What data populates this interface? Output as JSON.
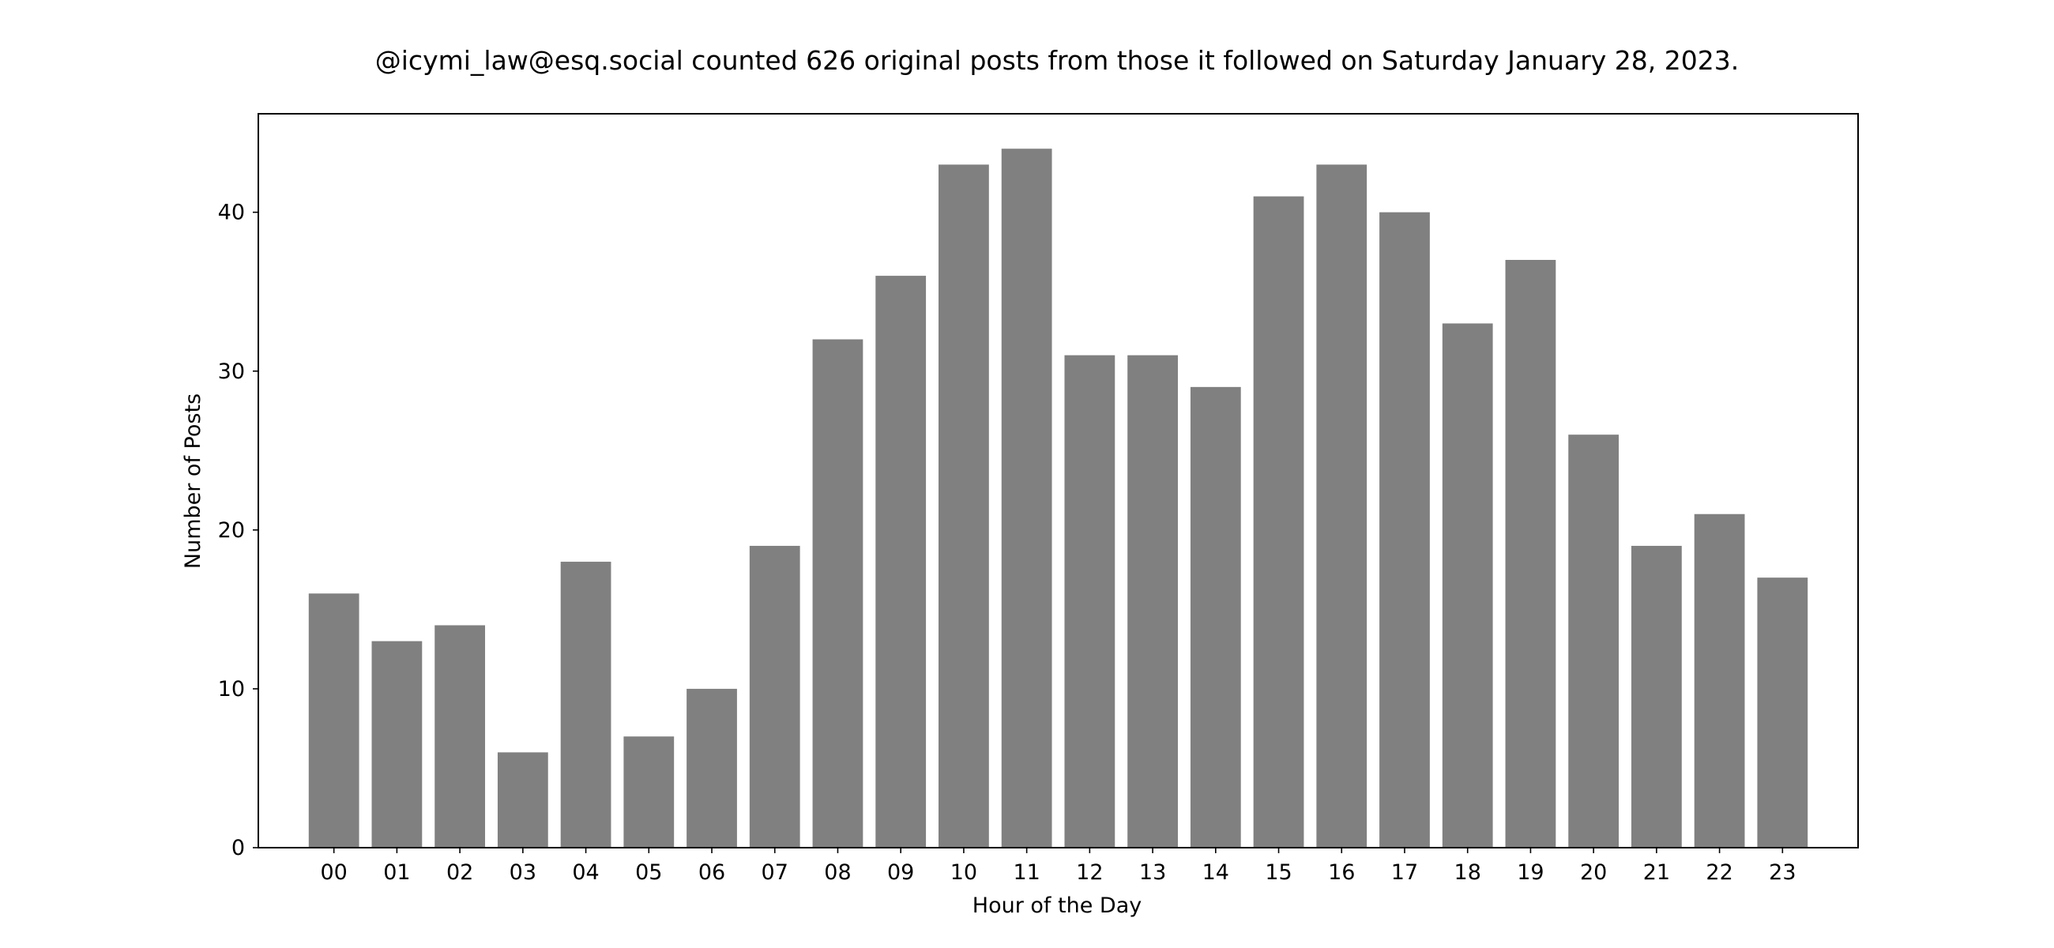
{
  "chart_data": {
    "type": "bar",
    "title": "@icymi_law@esq.social counted 626 original posts from those it followed on Saturday January 28, 2023.",
    "xlabel": "Hour of the Day",
    "ylabel": "Number of Posts",
    "categories": [
      "00",
      "01",
      "02",
      "03",
      "04",
      "05",
      "06",
      "07",
      "08",
      "09",
      "10",
      "11",
      "12",
      "13",
      "14",
      "15",
      "16",
      "17",
      "18",
      "19",
      "20",
      "21",
      "22",
      "23"
    ],
    "values": [
      16,
      13,
      14,
      6,
      18,
      7,
      10,
      19,
      32,
      36,
      43,
      44,
      31,
      31,
      29,
      41,
      43,
      40,
      33,
      37,
      26,
      19,
      21,
      17
    ],
    "ylim": [
      0,
      46.2
    ],
    "yticks": [
      0,
      10,
      20,
      30,
      40
    ],
    "grid": false,
    "legend": "none",
    "bar_color": "#808080"
  }
}
